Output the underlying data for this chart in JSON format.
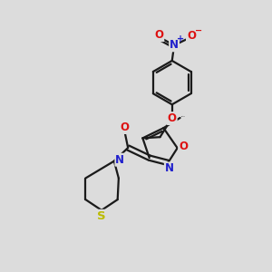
{
  "background_color": "#dcdcdc",
  "bond_color": "#1a1a1a",
  "atom_colors": {
    "N": "#2020cc",
    "O": "#dd1111",
    "S": "#bbbb00",
    "C": "#1a1a1a"
  },
  "figsize": [
    3.0,
    3.0
  ],
  "dpi": 100
}
